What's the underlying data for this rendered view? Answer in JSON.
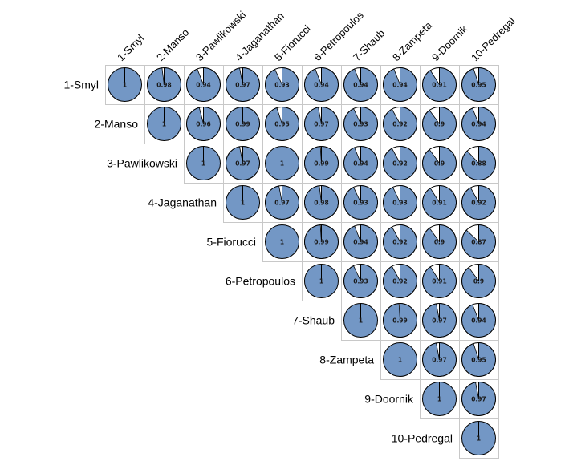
{
  "chart_data": {
    "type": "pie-matrix",
    "title": "",
    "labels": [
      "1-Smyl",
      "2-Manso",
      "3-Pawlikowski",
      "4-Jaganathan",
      "5-Fiorucci",
      "6-Petropoulos",
      "7-Shaub",
      "8-Zampeta",
      "9-Doornik",
      "10-Pedregal"
    ],
    "matrix": [
      [
        1,
        0.98,
        0.94,
        0.97,
        0.93,
        0.94,
        0.94,
        0.94,
        0.91,
        0.95
      ],
      [
        null,
        1,
        0.96,
        0.99,
        0.95,
        0.97,
        0.93,
        0.92,
        0.9,
        0.94
      ],
      [
        null,
        null,
        1,
        0.97,
        1,
        0.99,
        0.94,
        0.92,
        0.9,
        0.88
      ],
      [
        null,
        null,
        null,
        1,
        0.97,
        0.98,
        0.93,
        0.93,
        0.91,
        0.92
      ],
      [
        null,
        null,
        null,
        null,
        1,
        0.99,
        0.94,
        0.92,
        0.9,
        0.87
      ],
      [
        null,
        null,
        null,
        null,
        null,
        1,
        0.93,
        0.92,
        0.91,
        0.9
      ],
      [
        null,
        null,
        null,
        null,
        null,
        null,
        1,
        0.99,
        0.97,
        0.94
      ],
      [
        null,
        null,
        null,
        null,
        null,
        null,
        null,
        1,
        0.97,
        0.95
      ],
      [
        null,
        null,
        null,
        null,
        null,
        null,
        null,
        null,
        1,
        0.97
      ],
      [
        null,
        null,
        null,
        null,
        null,
        null,
        null,
        null,
        null,
        1
      ]
    ],
    "value_labels": [
      [
        "1",
        "0.98",
        "0.94",
        "0.97",
        "0.93",
        "0.94",
        "0.94",
        "0.94",
        "0.91",
        "0.95"
      ],
      [
        null,
        "1",
        "0.96",
        "0.99",
        "0.95",
        "0.97",
        "0.93",
        "0.92",
        "0.9",
        "0.94"
      ],
      [
        null,
        null,
        "1",
        "0.97",
        "1",
        "0.99",
        "0.94",
        "0.92",
        "0.9",
        "0.88"
      ],
      [
        null,
        null,
        null,
        "1",
        "0.97",
        "0.98",
        "0.93",
        "0.93",
        "0.91",
        "0.92"
      ],
      [
        null,
        null,
        null,
        null,
        "1",
        "0.99",
        "0.94",
        "0.92",
        "0.9",
        "0.87"
      ],
      [
        null,
        null,
        null,
        null,
        null,
        "1",
        "0.93",
        "0.92",
        "0.91",
        "0.9"
      ],
      [
        null,
        null,
        null,
        null,
        null,
        null,
        "1",
        "0.99",
        "0.97",
        "0.94"
      ],
      [
        null,
        null,
        null,
        null,
        null,
        null,
        null,
        "1",
        "0.97",
        "0.95"
      ],
      [
        null,
        null,
        null,
        null,
        null,
        null,
        null,
        null,
        "1",
        "0.97"
      ],
      [
        null,
        null,
        null,
        null,
        null,
        null,
        null,
        null,
        null,
        "1"
      ]
    ],
    "value_range": [
      0,
      1
    ],
    "colors": {
      "fill": "#7397c5",
      "empty": "#ffffff",
      "outline": "#000000",
      "cell_border": "#c8c8c8"
    }
  }
}
